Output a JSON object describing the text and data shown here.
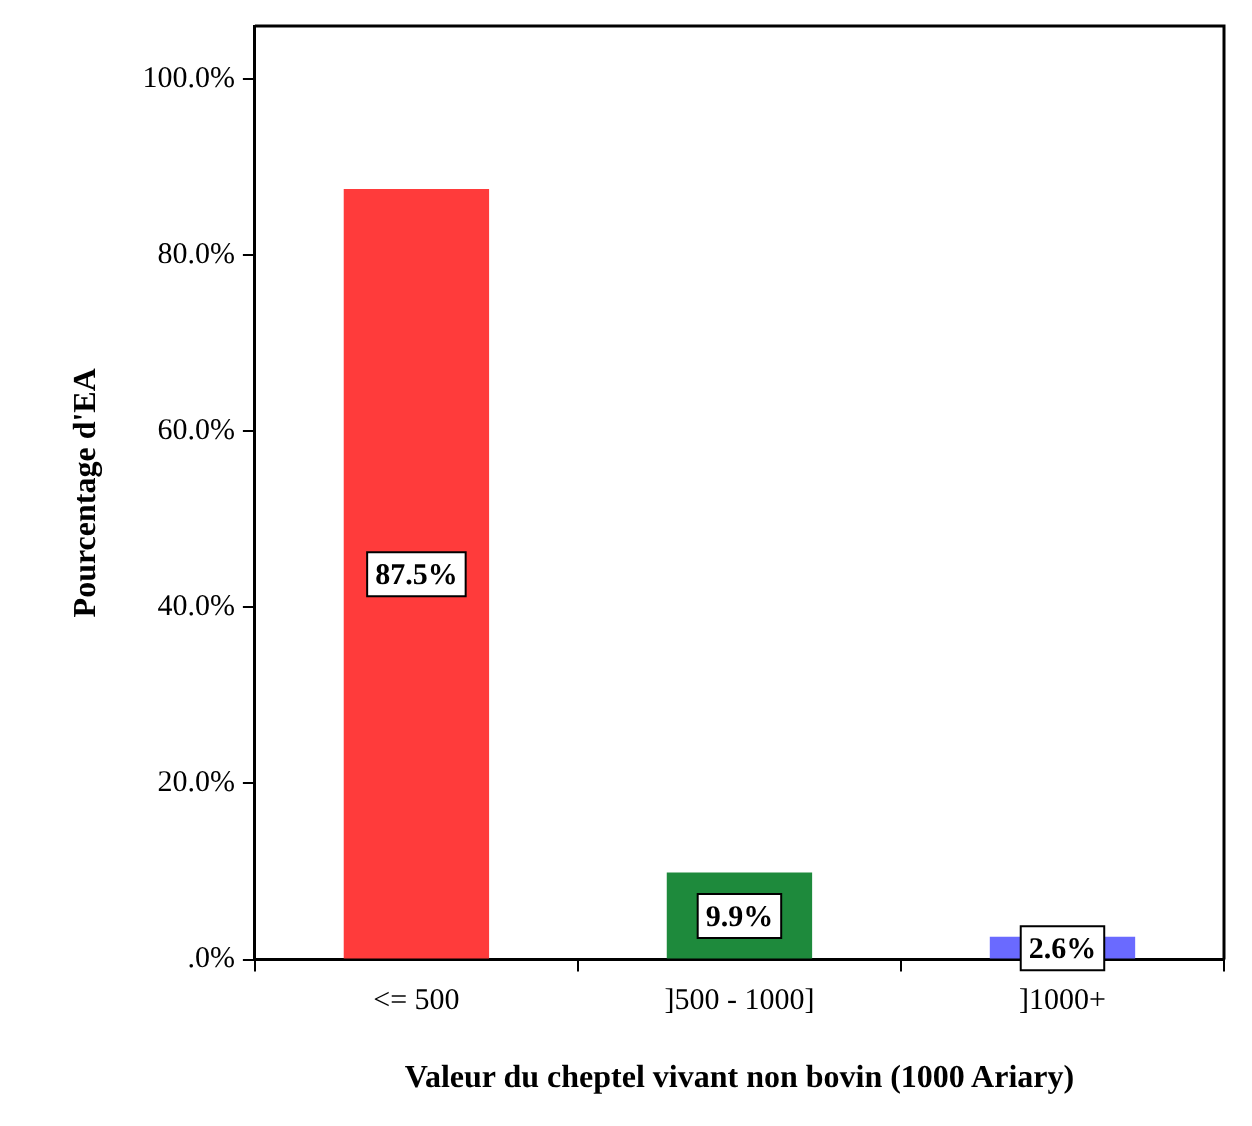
{
  "chart_data": {
    "type": "bar",
    "xlabel": "Valeur du cheptel vivant non bovin (1000 Ariary)",
    "ylabel": "Pourcentage d'EA",
    "categories": [
      "<= 500",
      "]500 - 1000]",
      "]1000+"
    ],
    "values": [
      87.5,
      9.9,
      2.6
    ],
    "colors": [
      "#ff3b3b",
      "#1e8a3c",
      "#6a6aff"
    ],
    "value_labels": [
      "87.5%",
      "9.9%",
      "2.6%"
    ],
    "ylim": [
      0,
      106
    ],
    "yticks": [
      {
        "value": 0,
        "label": ".0%"
      },
      {
        "value": 20,
        "label": "20.0%"
      },
      {
        "value": 40,
        "label": "40.0%"
      },
      {
        "value": 60,
        "label": "60.0%"
      },
      {
        "value": 80,
        "label": "80.0%"
      },
      {
        "value": 100,
        "label": "100.0%"
      }
    ],
    "grid": false,
    "legend": false
  }
}
